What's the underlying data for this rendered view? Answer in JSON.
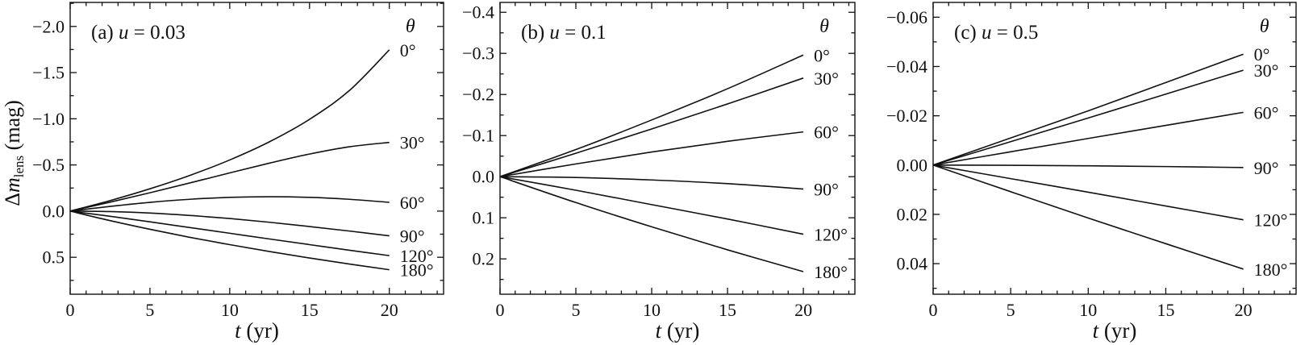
{
  "figure": {
    "background": "#ffffff",
    "line_color": "#111111",
    "text_color": "#111111",
    "legend_header": "θ",
    "xlabel": {
      "var": "t",
      "rest": " (yr)",
      "full": "t (yr)"
    },
    "ylabel": {
      "delta": "Δ",
      "var": "m",
      "sub": "lens",
      "rest": " (mag)",
      "full": "Δm_lens (mag)"
    }
  },
  "chart_data": [
    {
      "type": "line",
      "panel": "a",
      "title": "(a) u = 0.03",
      "panel_label": {
        "prefix": "(a) ",
        "var": "u",
        "value": " = 0.03"
      },
      "xlabel": "t (yr)",
      "ylabel": "Δm_lens (mag)",
      "legend_position": "inside top-right",
      "grid": false,
      "axis_note": "magnitude axis, negative values plotted upward",
      "xlim": [
        0,
        23.4
      ],
      "ylim_top": -2.26,
      "ylim_bottom": 0.9,
      "xtick_values": [
        0,
        5,
        10,
        15,
        20
      ],
      "xtick_labels": [
        "0",
        "5",
        "10",
        "15",
        "20"
      ],
      "ytick_values": [
        -2.0,
        -1.5,
        -1.0,
        -0.5,
        0.0,
        0.5
      ],
      "ytick_labels": [
        "−2.0",
        "−1.5",
        "−1.0",
        "−0.5",
        "0.0",
        "0.5"
      ],
      "x_minor_step": 1,
      "y_minor_step": 0.25,
      "x": [
        0,
        2.5,
        5,
        7.5,
        10,
        12.5,
        15,
        17.5,
        20
      ],
      "series": [
        {
          "name": "0°",
          "theta_deg": 0,
          "values": [
            0,
            -0.114,
            -0.242,
            -0.387,
            -0.554,
            -0.752,
            -0.994,
            -1.306,
            -1.747
          ]
        },
        {
          "name": "30°",
          "theta_deg": 30,
          "values": [
            0,
            -0.097,
            -0.199,
            -0.305,
            -0.414,
            -0.52,
            -0.618,
            -0.697,
            -0.744
          ]
        },
        {
          "name": "60°",
          "theta_deg": 60,
          "values": [
            0,
            -0.051,
            -0.095,
            -0.128,
            -0.149,
            -0.156,
            -0.149,
            -0.128,
            -0.095
          ]
        },
        {
          "name": "90°",
          "theta_deg": 90,
          "values": [
            0,
            0.005,
            0.021,
            0.047,
            0.08,
            0.121,
            0.167,
            0.216,
            0.268
          ]
        },
        {
          "name": "120°",
          "theta_deg": 120,
          "values": [
            0,
            0.056,
            0.116,
            0.178,
            0.24,
            0.302,
            0.363,
            0.424,
            0.482
          ]
        },
        {
          "name": "180°",
          "theta_deg": 180,
          "values": [
            0,
            0.103,
            0.197,
            0.284,
            0.363,
            0.438,
            0.508,
            0.573,
            0.635
          ]
        }
      ]
    },
    {
      "type": "line",
      "panel": "b",
      "title": "(b) u = 0.1",
      "panel_label": {
        "prefix": "(b) ",
        "var": "u",
        "value": " = 0.1"
      },
      "xlabel": "t (yr)",
      "ylabel": "",
      "legend_position": "inside top-right",
      "grid": false,
      "axis_note": "magnitude axis, negative values plotted upward",
      "xlim": [
        0,
        23.4
      ],
      "ylim_top": -0.424,
      "ylim_bottom": 0.286,
      "xtick_values": [
        0,
        5,
        10,
        15,
        20
      ],
      "xtick_labels": [
        "0",
        "5",
        "10",
        "15",
        "20"
      ],
      "ytick_values": [
        -0.4,
        -0.3,
        -0.2,
        -0.1,
        0.0,
        0.1,
        0.2
      ],
      "ytick_labels": [
        "−0.4",
        "−0.3",
        "−0.2",
        "−0.1",
        "0.0",
        "0.1",
        "0.2"
      ],
      "x_minor_step": 1,
      "y_minor_step": 0.05,
      "x": [
        0,
        5,
        10,
        15,
        20
      ],
      "series": [
        {
          "name": "0°",
          "theta_deg": 0,
          "values": [
            0,
            -0.066,
            -0.138,
            -0.214,
            -0.296
          ]
        },
        {
          "name": "30°",
          "theta_deg": 30,
          "values": [
            0,
            -0.057,
            -0.116,
            -0.177,
            -0.24
          ]
        },
        {
          "name": "60°",
          "theta_deg": 60,
          "values": [
            0,
            -0.031,
            -0.06,
            -0.086,
            -0.109
          ]
        },
        {
          "name": "90°",
          "theta_deg": 90,
          "values": [
            0,
            0.002,
            0.008,
            0.017,
            0.03
          ]
        },
        {
          "name": "120°",
          "theta_deg": 120,
          "values": [
            0,
            0.033,
            0.068,
            0.103,
            0.14
          ]
        },
        {
          "name": "180°",
          "theta_deg": 180,
          "values": [
            0,
            0.063,
            0.122,
            0.178,
            0.231
          ]
        }
      ]
    },
    {
      "type": "line",
      "panel": "c",
      "title": "(c) u = 0.5",
      "panel_label": {
        "prefix": "(c) ",
        "var": "u",
        "value": " = 0.5"
      },
      "xlabel": "t (yr)",
      "ylabel": "",
      "legend_position": "inside top-right",
      "grid": false,
      "axis_note": "magnitude axis, negative values plotted upward",
      "xlim": [
        0,
        23.4
      ],
      "ylim_top": -0.066,
      "ylim_bottom": 0.0524,
      "xtick_values": [
        0,
        5,
        10,
        15,
        20
      ],
      "xtick_labels": [
        "0",
        "5",
        "10",
        "15",
        "20"
      ],
      "ytick_values": [
        -0.06,
        -0.04,
        -0.02,
        0.0,
        0.02,
        0.04
      ],
      "ytick_labels": [
        "−0.06",
        "−0.04",
        "−0.02",
        "0.00",
        "0.02",
        "0.04"
      ],
      "x_minor_step": 1,
      "y_minor_step": 0.01,
      "x": [
        0,
        5,
        10,
        15,
        20
      ],
      "series": [
        {
          "name": "0°",
          "theta_deg": 0,
          "values": [
            0,
            -0.011,
            -0.022,
            -0.0335,
            -0.045
          ]
        },
        {
          "name": "30°",
          "theta_deg": 30,
          "values": [
            0,
            -0.0095,
            -0.0191,
            -0.0288,
            -0.0385
          ]
        },
        {
          "name": "60°",
          "theta_deg": 60,
          "values": [
            0,
            -0.0054,
            -0.0108,
            -0.0161,
            -0.0214
          ]
        },
        {
          "name": "90°",
          "theta_deg": 90,
          "values": [
            0,
            0.0001,
            0.0003,
            0.0006,
            0.001
          ]
        },
        {
          "name": "120°",
          "theta_deg": 120,
          "values": [
            0,
            0.0055,
            0.011,
            0.0166,
            0.0222
          ]
        },
        {
          "name": "180°",
          "theta_deg": 180,
          "values": [
            0,
            0.0108,
            0.0215,
            0.0319,
            0.0422
          ]
        }
      ]
    }
  ]
}
